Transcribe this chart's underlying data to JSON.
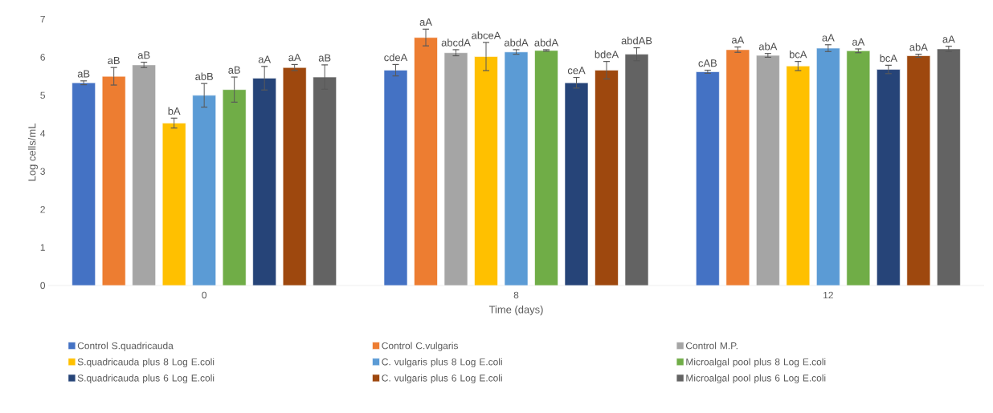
{
  "chart_data": {
    "type": "bar",
    "xlabel": "Time (days)",
    "ylabel": "Log cells/mL",
    "categories": [
      "0",
      "8",
      "12"
    ],
    "ylim": [
      0,
      7
    ],
    "yticks": [
      0,
      1,
      2,
      3,
      4,
      5,
      6,
      7
    ],
    "legend": "bottom",
    "series": [
      {
        "name": "Control S.quadricauda",
        "color": "#4472c4",
        "values": [
          5.33,
          5.66,
          5.62
        ],
        "errors": [
          0.05,
          0.15,
          0.04
        ]
      },
      {
        "name": "Control C.vulgaris",
        "color": "#ed7d31",
        "values": [
          5.5,
          6.52,
          6.2
        ],
        "errors": [
          0.23,
          0.22,
          0.07
        ]
      },
      {
        "name": "Control M.P.",
        "color": "#a5a5a5",
        "values": [
          5.8,
          6.12,
          6.05
        ],
        "errors": [
          0.07,
          0.08,
          0.05
        ]
      },
      {
        "name": "S.quadricauda plus 8 Log E.coli",
        "color": "#ffc000",
        "values": [
          4.27,
          6.02,
          5.77
        ],
        "errors": [
          0.13,
          0.37,
          0.12
        ]
      },
      {
        "name": "C. vulgaris plus 8 Log E.coli",
        "color": "#5b9bd5",
        "values": [
          5.0,
          6.14,
          6.24
        ],
        "errors": [
          0.31,
          0.06,
          0.09
        ]
      },
      {
        "name": "Microalgal pool plus 8 Log E.coli",
        "color": "#70ad47",
        "values": [
          5.15,
          6.18,
          6.17
        ],
        "errors": [
          0.33,
          0.02,
          0.05
        ]
      },
      {
        "name": "S.quadricauda plus 6 Log E.coli",
        "color": "#264478",
        "values": [
          5.45,
          5.33,
          5.68
        ],
        "errors": [
          0.31,
          0.14,
          0.11
        ]
      },
      {
        "name": "C. vulgaris plus 6 Log E.coli",
        "color": "#9e480e",
        "values": [
          5.73,
          5.66,
          6.04
        ],
        "errors": [
          0.08,
          0.23,
          0.04
        ]
      },
      {
        "name": "Microalgal pool plus 6 Log E.coli",
        "color": "#636363",
        "values": [
          5.48,
          6.08,
          6.22
        ],
        "errors": [
          0.32,
          0.17,
          0.07
        ]
      }
    ],
    "annotations": [
      "aB",
      "aB",
      "aB",
      "bA",
      "abB",
      "aB",
      "aA",
      "aA",
      "aB",
      "cdeA",
      "aA",
      "abcdA",
      "abceA",
      "abdA",
      "abdA",
      "ceA",
      "bdeA",
      "abdAB",
      "cAB",
      "aA",
      "abA",
      "bcA",
      "aA",
      "aA",
      "bcA",
      "abA",
      "aA"
    ]
  }
}
